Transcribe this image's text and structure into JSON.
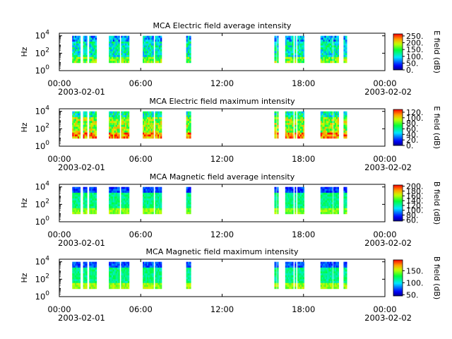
{
  "figure": {
    "x_ticks": [
      "00:00",
      "06:00",
      "12:00",
      "18:00",
      "00:00"
    ],
    "x_tick_hours": [
      0,
      6,
      12,
      18,
      24
    ],
    "date_start": "2003-02-01",
    "date_end": "2003-02-02"
  },
  "chart_data": [
    {
      "type": "heatmap",
      "title": "MCA  Electric field average intensity",
      "ylabel": "Hz",
      "yticks": [
        {
          "base": "10",
          "exp": "0"
        },
        {
          "base": "10",
          "exp": "2"
        },
        {
          "base": "10",
          "exp": "4"
        }
      ],
      "y_log_range": [
        0,
        4.3
      ],
      "colorbar_label": "E field (dB)",
      "colorbar_ticks": [
        "0.",
        "50.",
        "100.",
        "150.",
        "200.",
        "250."
      ],
      "colorbar_range": [
        0,
        265
      ],
      "intensity": {
        "low_band": 0.62,
        "mid": 0.42,
        "top": 0.3,
        "variability": 0.16
      }
    },
    {
      "type": "heatmap",
      "title": "MCA  Electric field maximum intensity",
      "ylabel": "Hz",
      "yticks": [
        {
          "base": "10",
          "exp": "0"
        },
        {
          "base": "10",
          "exp": "2"
        },
        {
          "base": "10",
          "exp": "4"
        }
      ],
      "y_log_range": [
        0,
        4.3
      ],
      "colorbar_label": "E field (dB)",
      "colorbar_ticks": [
        "0.",
        "20.",
        "40.",
        "60.",
        "80.",
        "100.",
        "120."
      ],
      "colorbar_range": [
        0,
        130
      ],
      "intensity": {
        "low_band": 0.88,
        "mid": 0.66,
        "top": 0.45,
        "variability": 0.18
      }
    },
    {
      "type": "heatmap",
      "title": "MCA  Magnetic field average intensity",
      "ylabel": "Hz",
      "yticks": [
        {
          "base": "10",
          "exp": "0"
        },
        {
          "base": "10",
          "exp": "2"
        },
        {
          "base": "10",
          "exp": "4"
        }
      ],
      "y_log_range": [
        0,
        4.3
      ],
      "colorbar_label": "B field (dB)",
      "colorbar_ticks": [
        "60.",
        "80.",
        "100.",
        "120.",
        "140.",
        "160.",
        "180.",
        "200."
      ],
      "colorbar_range": [
        55,
        205
      ],
      "intensity": {
        "low_band": 0.66,
        "mid": 0.48,
        "top": 0.18,
        "variability": 0.08
      }
    },
    {
      "type": "heatmap",
      "title": "MCA  Magnetic field maximum intensity",
      "ylabel": "Hz",
      "yticks": [
        {
          "base": "10",
          "exp": "0"
        },
        {
          "base": "10",
          "exp": "2"
        },
        {
          "base": "10",
          "exp": "4"
        }
      ],
      "y_log_range": [
        0,
        4.3
      ],
      "colorbar_label": "B field (dB)",
      "colorbar_ticks": [
        "50.",
        "100.",
        "150."
      ],
      "colorbar_range": [
        45,
        195
      ],
      "intensity": {
        "low_band": 0.68,
        "mid": 0.48,
        "top": 0.2,
        "variability": 0.08
      }
    }
  ],
  "data_segments_hours": [
    [
      0.95,
      1.55
    ],
    [
      1.75,
      2.05
    ],
    [
      2.2,
      2.75
    ],
    [
      3.65,
      4.45
    ],
    [
      4.55,
      5.15
    ],
    [
      6.15,
      6.95
    ],
    [
      7.05,
      7.55
    ],
    [
      9.35,
      9.7
    ],
    [
      15.85,
      16.0
    ],
    [
      16.05,
      16.15
    ],
    [
      16.65,
      17.25
    ],
    [
      17.35,
      17.45
    ],
    [
      17.55,
      18.05
    ],
    [
      19.25,
      20.15
    ],
    [
      20.2,
      20.6
    ],
    [
      20.95,
      21.2
    ]
  ]
}
